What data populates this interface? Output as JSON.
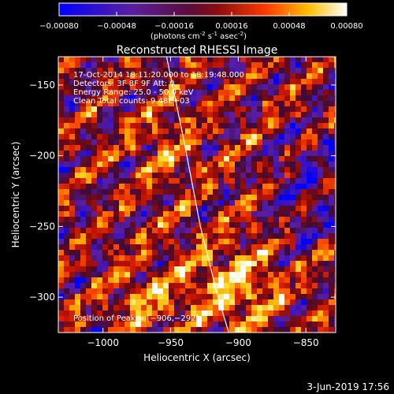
{
  "colorbar": {
    "ticks": [
      "-0.00080",
      "-0.00048",
      "-0.00016",
      "0.00016",
      "0.00048",
      "0.00080"
    ],
    "unit_prefix": "(photons cm",
    "unit_exp1": "-2",
    "unit_mid": " s",
    "unit_exp2": "-1",
    "unit_mid2": " asec",
    "unit_exp3": "-2",
    "unit_suffix": ")",
    "range": [
      -0.0008,
      0.0008
    ]
  },
  "chart_data": {
    "type": "heatmap",
    "title": "Reconstructed RHESSI Image",
    "xlabel": "Heliocentric X (arcsec)",
    "ylabel": "Heliocentric Y (arcsec)",
    "xlim": [
      -1033,
      -828
    ],
    "ylim": [
      -325,
      -130
    ],
    "x_ticks": [
      -1000,
      -950,
      -900,
      -850
    ],
    "x_tick_labels": [
      "−1000",
      "−950",
      "−900",
      "−850"
    ],
    "y_ticks": [
      -150,
      -200,
      -250,
      -300
    ],
    "y_tick_labels": [
      "−150",
      "−200",
      "−250",
      "−300"
    ],
    "colormap": "blue-purple-red-yellow-white",
    "peak": [
      -906,
      -292
    ],
    "limb_curve": [
      [
        -953,
        -130
      ],
      [
        -940,
        -190
      ],
      [
        -928,
        -250
      ],
      [
        -915,
        -300
      ],
      [
        -907,
        -325
      ]
    ],
    "annotations": [
      "17-Oct-2014 18:11:20.000 to 18:19:48.000",
      "Detectors: 3F 8F 9F  Att: 0",
      "Energy Range: 25.0 - 50.0 keV",
      "Clean    Total counts: 9.48E+03"
    ],
    "peak_label": "Position of Peak = [−906,−292]"
  },
  "footer": {
    "date": "3-Jun-2019 17:56"
  }
}
